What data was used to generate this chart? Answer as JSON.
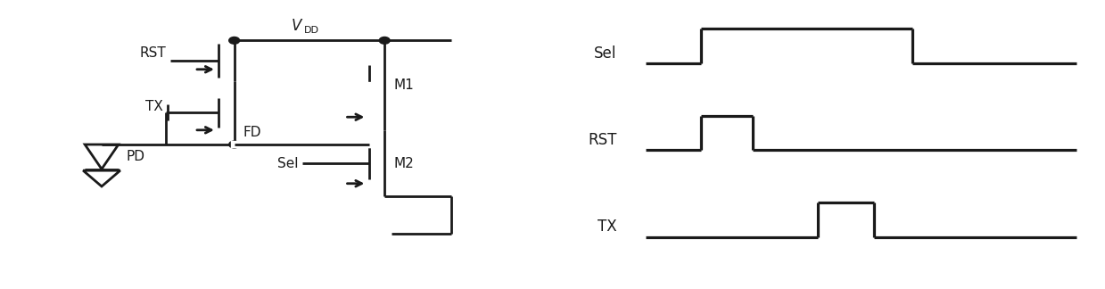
{
  "fig_width": 12.39,
  "fig_height": 3.24,
  "dpi": 100,
  "bg_color": "#ffffff",
  "line_color": "#1a1a1a",
  "lw": 2.0,
  "font_size": 11,
  "timing": {
    "sel_label": "Sel",
    "rst_label": "RST",
    "tx_label": "TX"
  }
}
